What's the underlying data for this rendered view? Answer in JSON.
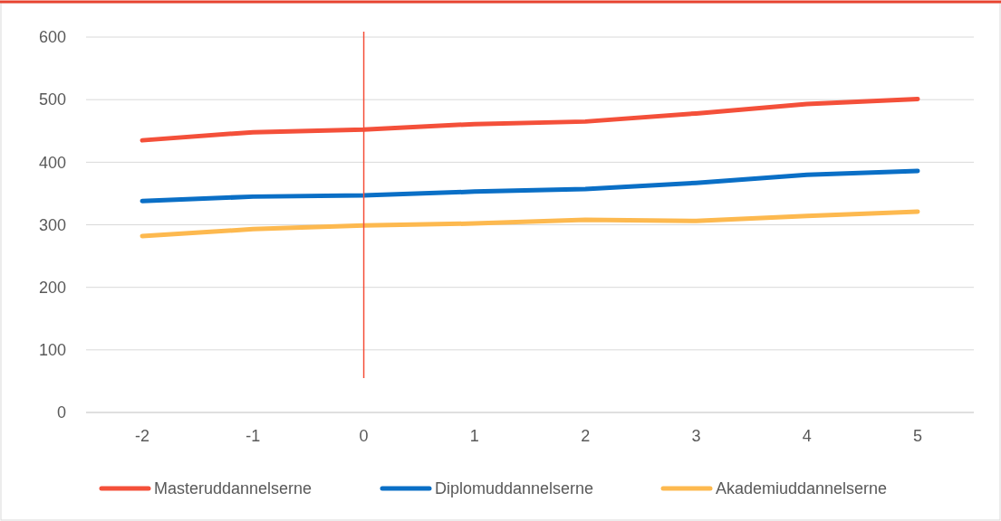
{
  "chart_data": {
    "type": "line",
    "categories": [
      "-2",
      "-1",
      "0",
      "1",
      "2",
      "3",
      "4",
      "5"
    ],
    "series": [
      {
        "name": "Masteruddannelserne",
        "color": "#f4503a",
        "values": [
          435,
          448,
          452,
          461,
          465,
          478,
          493,
          501
        ]
      },
      {
        "name": "Diplomuddannelserne",
        "color": "#0a6fc6",
        "values": [
          338,
          345,
          347,
          353,
          357,
          367,
          380,
          386
        ]
      },
      {
        "name": "Akademiuddannelserne",
        "color": "#fdb94f",
        "values": [
          282,
          293,
          299,
          302,
          308,
          306,
          314,
          321
        ]
      }
    ],
    "ylim": [
      0,
      600
    ],
    "yticks": [
      0,
      100,
      200,
      300,
      400,
      500,
      600
    ],
    "grid": "y",
    "legend": "bottom",
    "marker": "none",
    "line_style": "solid",
    "ref_lines": [
      {
        "axis": "x",
        "value": "0",
        "color": "#f4503a"
      }
    ]
  }
}
